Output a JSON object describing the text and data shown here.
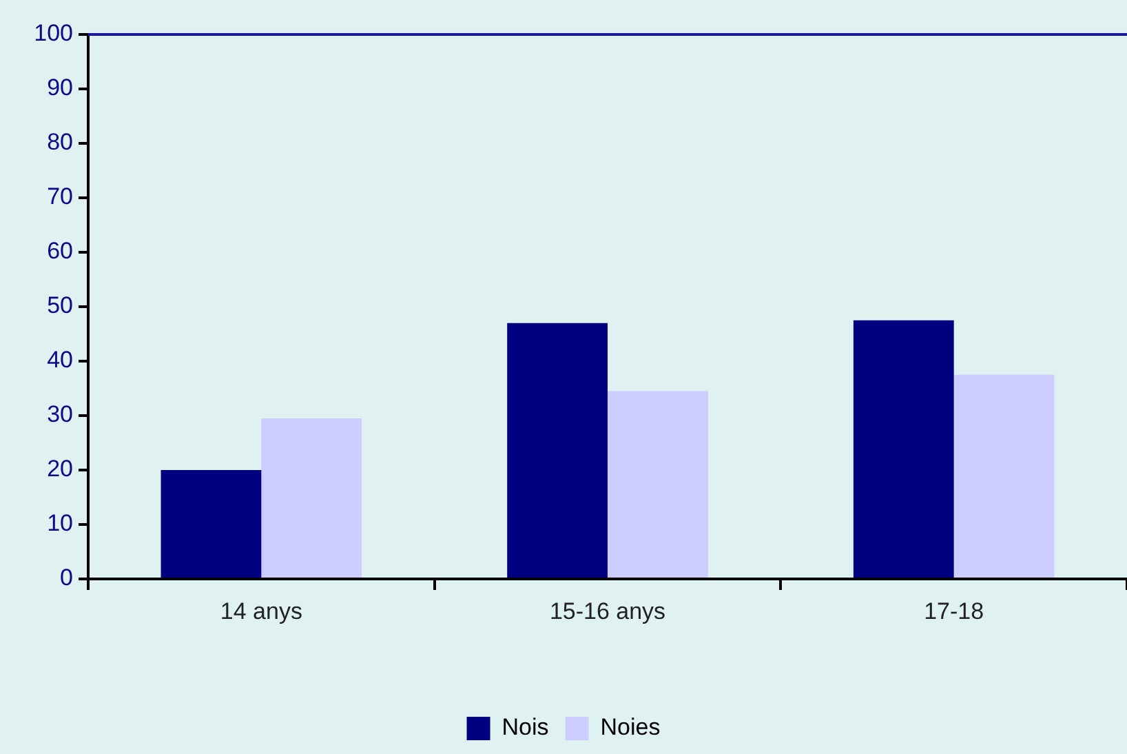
{
  "chart_data": {
    "type": "bar",
    "categories": [
      "14 anys",
      "15-16 anys",
      "17-18"
    ],
    "series": [
      {
        "name": "Nois",
        "color": "#000080",
        "values": [
          20,
          47,
          47.5
        ]
      },
      {
        "name": "Noies",
        "color": "#ccccff",
        "values": [
          29.5,
          34.5,
          37.5
        ]
      }
    ],
    "ylim": [
      0,
      100
    ],
    "yticks": [
      0,
      10,
      20,
      30,
      40,
      50,
      60,
      70,
      80,
      90,
      100
    ],
    "legend": "bottom"
  }
}
